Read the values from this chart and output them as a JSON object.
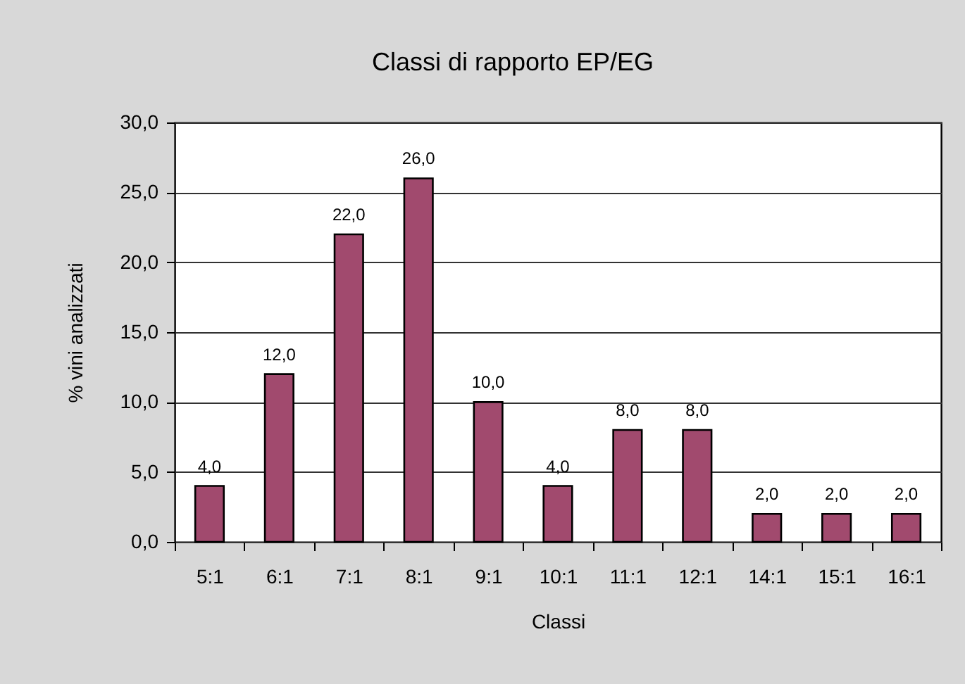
{
  "chart_data": {
    "type": "bar",
    "title": "Classi di rapporto EP/EG",
    "xlabel": "Classi",
    "ylabel": "% vini analizzati",
    "categories": [
      "5:1",
      "6:1",
      "7:1",
      "8:1",
      "9:1",
      "10:1",
      "11:1",
      "12:1",
      "14:1",
      "15:1",
      "16:1"
    ],
    "values": [
      4,
      12,
      22,
      26,
      10,
      4,
      8,
      8,
      2,
      2,
      2
    ],
    "color": "#a14a6e",
    "value_labels": [
      "4,0",
      "12,0",
      "22,0",
      "26,0",
      "10,0",
      "4,0",
      "8,0",
      "8,0",
      "2,0",
      "2,0",
      "2,0"
    ],
    "ylim": [
      0,
      30
    ],
    "yticks": [
      {
        "value": 0,
        "label": "0,0"
      },
      {
        "value": 5,
        "label": "5,0"
      },
      {
        "value": 10,
        "label": "10,0"
      },
      {
        "value": 15,
        "label": "15,0"
      },
      {
        "value": 20,
        "label": "20,0"
      },
      {
        "value": 25,
        "label": "25,0"
      },
      {
        "value": 30,
        "label": "30,0"
      }
    ],
    "grid": "y"
  }
}
